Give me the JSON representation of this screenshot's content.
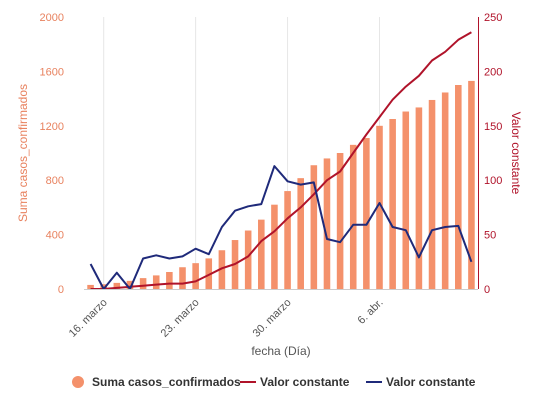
{
  "chart_data": {
    "type": "bar",
    "xlabel": "fecha (Día)",
    "ylabel_left": "Suma casos_confirmados",
    "ylabel_right": "Valor constante",
    "ylim_left": [
      0,
      2000
    ],
    "ylim_right": [
      0,
      250
    ],
    "y_ticks_left": [
      "0",
      "400",
      "800",
      "1200",
      "1600",
      "2000"
    ],
    "y_ticks_right": [
      "0",
      "50",
      "100",
      "150",
      "200",
      "250"
    ],
    "x_ticks": [
      {
        "label": "16. marzo",
        "index": 1
      },
      {
        "label": "23. marzo",
        "index": 8
      },
      {
        "label": "30. marzo",
        "index": 15
      },
      {
        "label": "6. abr.",
        "index": 22
      }
    ],
    "grid": "vertical",
    "legend_position": "bottom",
    "series": [
      {
        "name": "Suma casos_confirmados",
        "type": "bar",
        "axis": "left",
        "color": "#f4916b",
        "values": [
          30,
          35,
          45,
          60,
          80,
          100,
          125,
          160,
          190,
          225,
          285,
          360,
          430,
          510,
          620,
          720,
          815,
          910,
          960,
          1000,
          1060,
          1110,
          1200,
          1250,
          1305,
          1335,
          1390,
          1445,
          1500,
          1530
        ]
      },
      {
        "name": "Valor constante",
        "type": "line",
        "axis": "right",
        "color": "#b0132a",
        "values": [
          0,
          0,
          1,
          2,
          3,
          4,
          5,
          5,
          7,
          13,
          19,
          23,
          30,
          44,
          53,
          65,
          75,
          87,
          100,
          108,
          125,
          142,
          158,
          174,
          186,
          196,
          210,
          218,
          229,
          236
        ]
      },
      {
        "name": "Valor constante",
        "type": "line",
        "axis": "right",
        "color": "#1f2a7a",
        "values": [
          23,
          0,
          15,
          0,
          28,
          31,
          28,
          30,
          37,
          32,
          57,
          72,
          76,
          78,
          113,
          99,
          96,
          98,
          46,
          43,
          59,
          59,
          79,
          57,
          54,
          29,
          54,
          57,
          58,
          25
        ]
      }
    ]
  }
}
